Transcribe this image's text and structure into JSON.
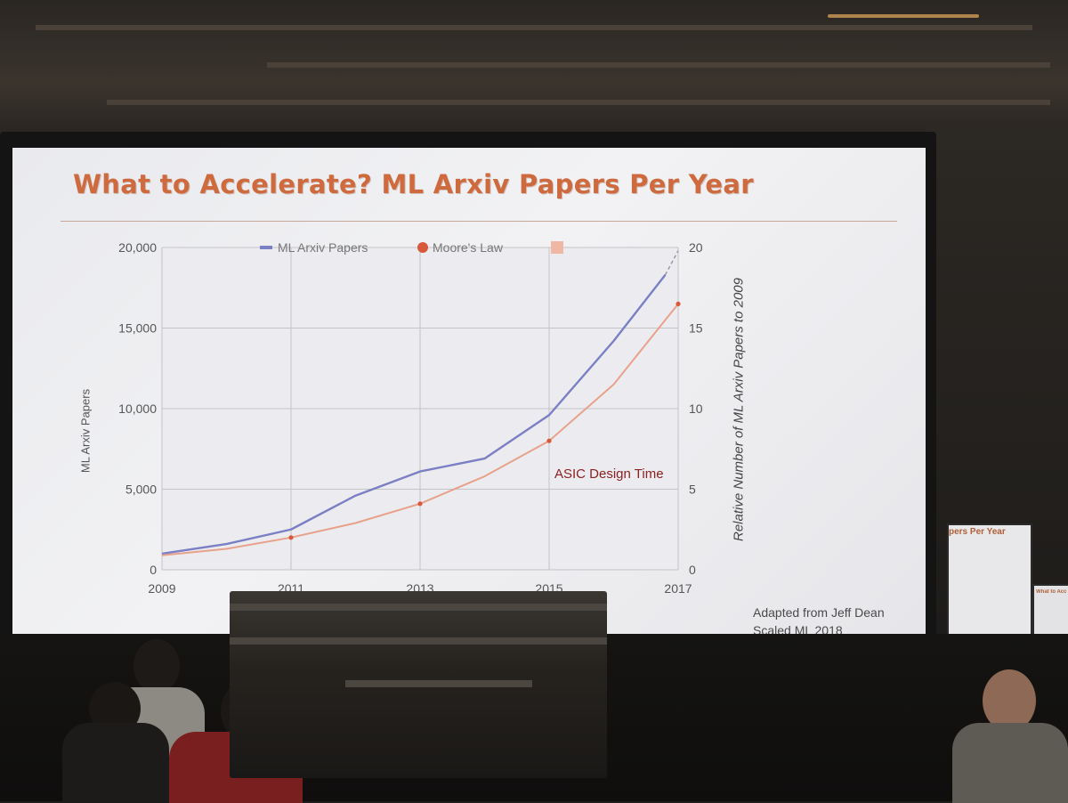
{
  "slide": {
    "title": "What to Accelerate? ML Arxiv Papers Per Year",
    "credit_line1": "Adapted from Jeff Dean",
    "credit_line2": "Scaled ML 2018",
    "annotation": "ASIC Design Time"
  },
  "side_screen": {
    "title": "pers Per Year",
    "small_title": "What to Acc"
  },
  "chart_data": {
    "type": "line",
    "xlabel": "",
    "ylabel": "ML Arxiv Papers",
    "y2label": "Relative Number of ML Arxiv Papers  to 2009",
    "x_ticks": [
      "2009",
      "2011",
      "2013",
      "2015",
      "2017"
    ],
    "xlim": [
      2009,
      2017
    ],
    "ylim": [
      0,
      20000
    ],
    "y_ticks": [
      "0",
      "5,000",
      "10,000",
      "15,000",
      "20,000"
    ],
    "y2lim": [
      0,
      20
    ],
    "y2_ticks": [
      "0",
      "5",
      "10",
      "15",
      "20"
    ],
    "grid": true,
    "legend_position": "top",
    "legend": [
      "ML Arxiv Papers",
      "Moore's Law",
      ""
    ],
    "series": [
      {
        "name": "ML Arxiv Papers",
        "color": "#7b7fc4",
        "x": [
          2009,
          2010,
          2011,
          2012,
          2013,
          2014,
          2015,
          2016,
          2016.8
        ],
        "y": [
          1000,
          1600,
          2500,
          4600,
          6100,
          6900,
          9600,
          14200,
          18300
        ]
      },
      {
        "name": "Moore's Law",
        "color": "#e8a18a",
        "marker_color": "#d9583a",
        "x": [
          2009,
          2010,
          2011,
          2012,
          2013,
          2014,
          2015,
          2016,
          2017
        ],
        "y": [
          900,
          1300,
          2000,
          2900,
          4100,
          5800,
          8000,
          11500,
          16500
        ],
        "markers_at": [
          2011,
          2013,
          2015,
          2017
        ]
      }
    ],
    "projection": {
      "x": [
        2016.8,
        2017
      ],
      "y": [
        18300,
        19800
      ]
    },
    "annotation_point": {
      "x": 2015,
      "y": 8000
    }
  }
}
